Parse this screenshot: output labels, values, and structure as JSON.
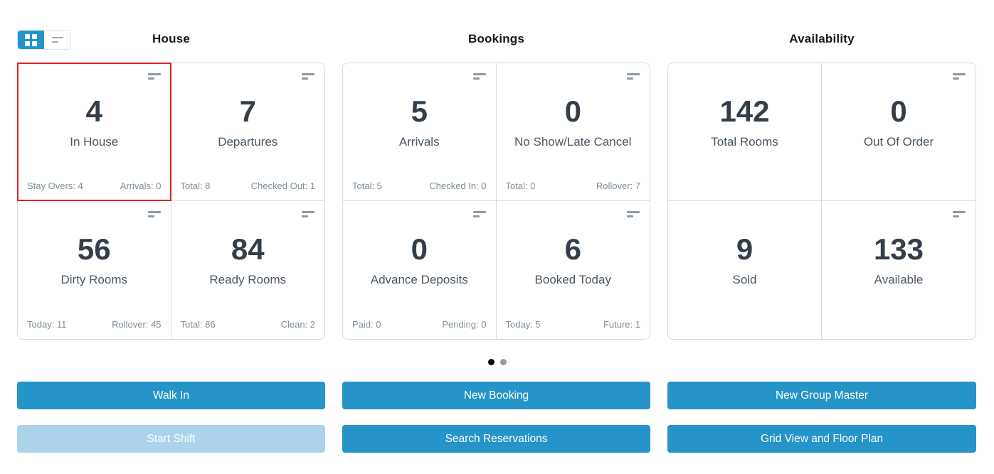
{
  "view_toggle": {
    "active_view": "grid",
    "grid_icon": "grid-view-icon",
    "list_icon": "list-view-icon"
  },
  "sections": [
    {
      "title": "House",
      "cards": [
        {
          "value": "4",
          "label": "In House",
          "footer_left": "Stay Overs: 4",
          "footer_right": "Arrivals: 0",
          "highlighted": true,
          "menu_icon": true
        },
        {
          "value": "7",
          "label": "Departures",
          "footer_left": "Total: 8",
          "footer_right": "Checked Out: 1",
          "highlighted": false,
          "menu_icon": true
        },
        {
          "value": "56",
          "label": "Dirty Rooms",
          "footer_left": "Today: 11",
          "footer_right": "Rollover: 45",
          "highlighted": false,
          "menu_icon": true
        },
        {
          "value": "84",
          "label": "Ready Rooms",
          "footer_left": "Total: 86",
          "footer_right": "Clean: 2",
          "highlighted": false,
          "menu_icon": true
        }
      ]
    },
    {
      "title": "Bookings",
      "cards": [
        {
          "value": "5",
          "label": "Arrivals",
          "footer_left": "Total: 5",
          "footer_right": "Checked In: 0",
          "highlighted": false,
          "menu_icon": true
        },
        {
          "value": "0",
          "label": "No Show/Late Cancel",
          "footer_left": "Total: 0",
          "footer_right": "Rollover: 7",
          "highlighted": false,
          "menu_icon": true
        },
        {
          "value": "0",
          "label": "Advance Deposits",
          "footer_left": "Paid: 0",
          "footer_right": "Pending: 0",
          "highlighted": false,
          "menu_icon": true
        },
        {
          "value": "6",
          "label": "Booked Today",
          "footer_left": "Today: 5",
          "footer_right": "Future: 1",
          "highlighted": false,
          "menu_icon": true
        }
      ]
    },
    {
      "title": "Availability",
      "cards": [
        {
          "value": "142",
          "label": "Total Rooms",
          "highlighted": false,
          "menu_icon": false
        },
        {
          "value": "0",
          "label": "Out Of Order",
          "highlighted": false,
          "menu_icon": true
        },
        {
          "value": "9",
          "label": "Sold",
          "highlighted": false,
          "menu_icon": false
        },
        {
          "value": "133",
          "label": "Available",
          "highlighted": false,
          "menu_icon": true
        }
      ]
    }
  ],
  "pagination": {
    "total_pages": 2,
    "active_page": 1
  },
  "actions": {
    "walk_in": "Walk In",
    "new_booking": "New Booking",
    "new_group_master": "New Group Master",
    "start_shift": "Start Shift",
    "search_reservations": "Search Reservations",
    "grid_view_floor_plan": "Grid View and Floor Plan"
  },
  "colors": {
    "accent_blue": "#2594c8",
    "disabled_blue": "#abd4ec",
    "highlight_red": "#e02220",
    "card_border": "#d7dbe0",
    "number_text": "#333e48",
    "label_text": "#4a5763",
    "footer_text": "#7e8e99"
  }
}
